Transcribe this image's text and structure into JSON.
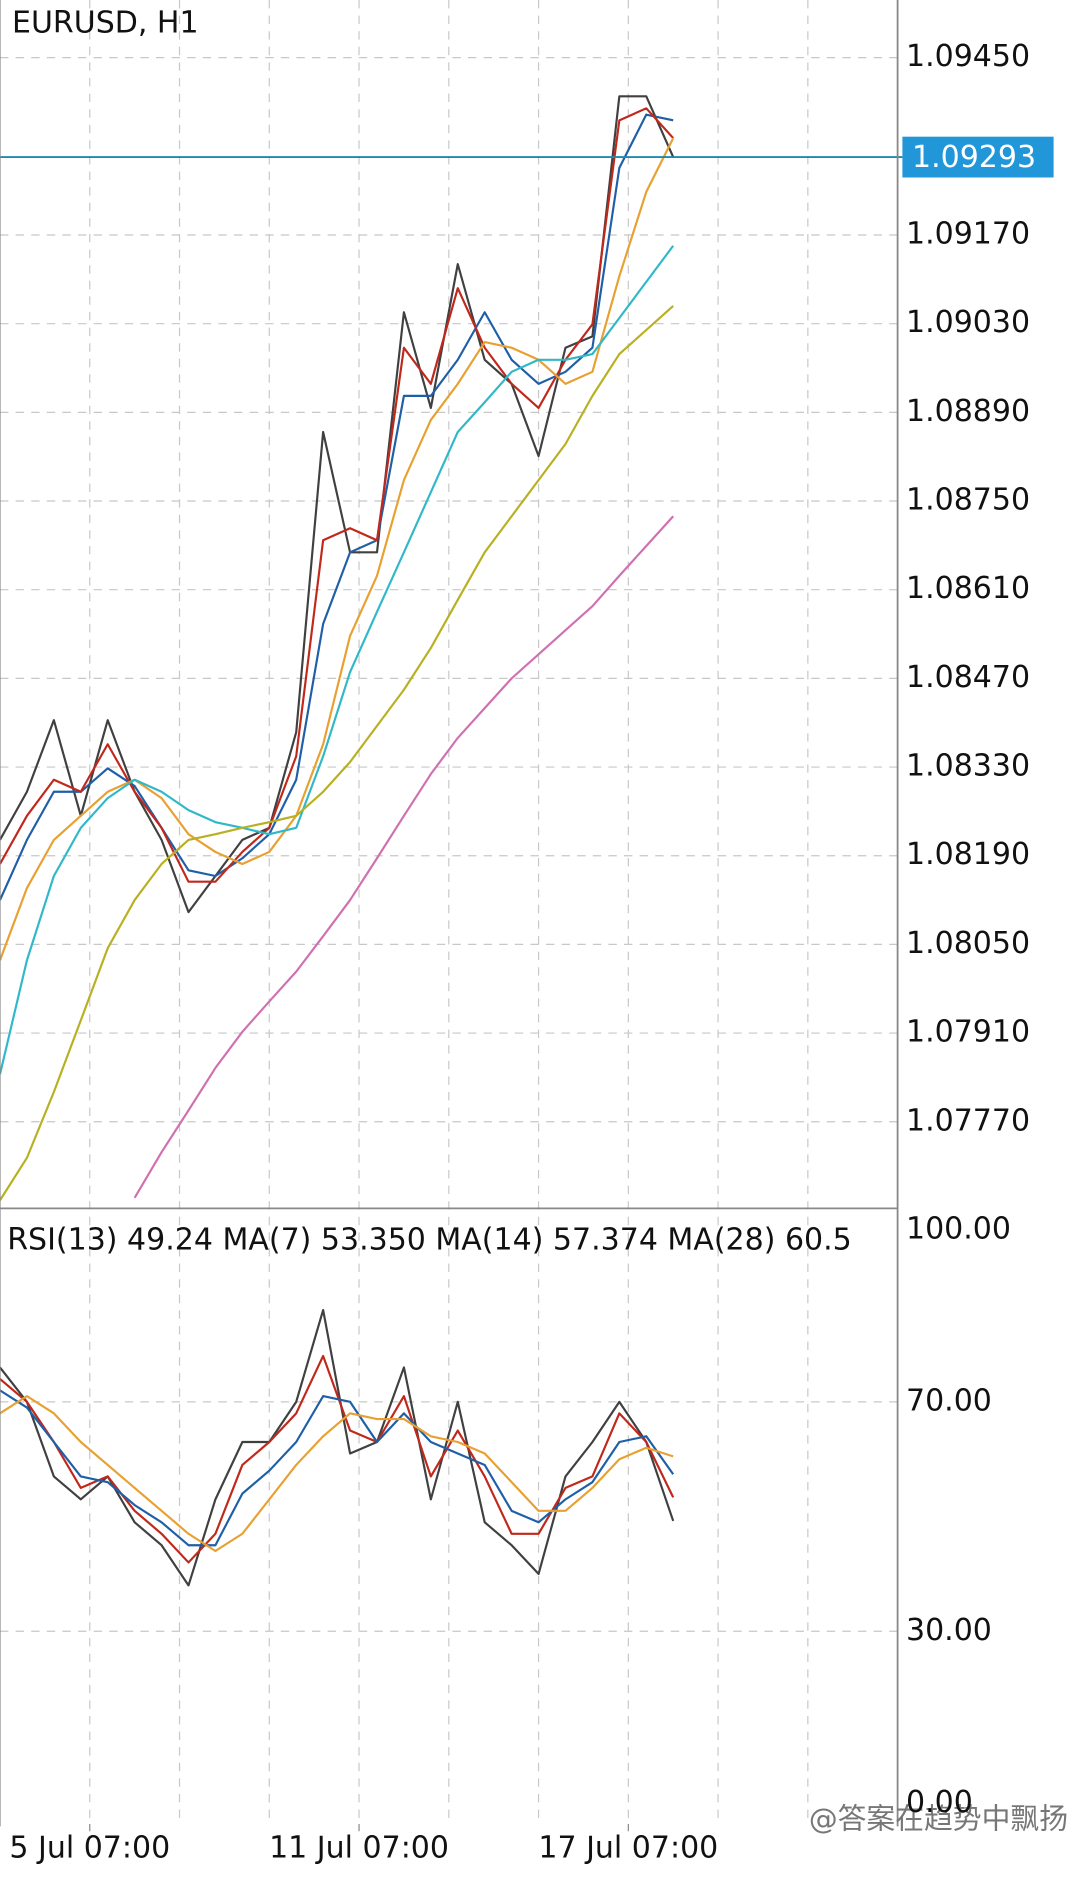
{
  "chart_data": [
    {
      "type": "line",
      "title": "EURUSD, H1",
      "x": [
        0,
        3,
        6,
        9,
        12,
        15,
        18,
        21,
        24,
        27,
        30,
        33,
        36,
        39,
        42,
        45,
        48,
        51,
        54,
        57,
        60,
        63,
        66,
        69,
        72,
        75
      ],
      "xlim": [
        0,
        100
      ],
      "ylim": [
        1.07637,
        1.09541
      ],
      "yticks": [
        {
          "value": 1.0945,
          "label": "1.09450"
        },
        {
          "value": 1.0917,
          "label": "1.09170"
        },
        {
          "value": 1.0903,
          "label": "1.09030"
        },
        {
          "value": 1.0889,
          "label": "1.08890"
        },
        {
          "value": 1.0875,
          "label": "1.08750"
        },
        {
          "value": 1.0861,
          "label": "1.08610"
        },
        {
          "value": 1.0847,
          "label": "1.08470"
        },
        {
          "value": 1.0833,
          "label": "1.08330"
        },
        {
          "value": 1.0819,
          "label": "1.08190"
        },
        {
          "value": 1.0805,
          "label": "1.08050"
        },
        {
          "value": 1.0791,
          "label": "1.07910"
        },
        {
          "value": 1.0777,
          "label": "1.07770"
        }
      ],
      "current_price": 1.09293,
      "current_price_color": "#1b8bb0",
      "current_label_color": "#2196d8",
      "grid": true,
      "series": [
        {
          "color": "#404040",
          "values": [
            1.08215,
            1.08291,
            1.08404,
            1.08253,
            1.08404,
            1.08291,
            1.08215,
            1.08101,
            1.08158,
            1.08215,
            1.08234,
            1.08385,
            1.08859,
            1.08669,
            1.08669,
            1.09048,
            1.08897,
            1.09124,
            1.08973,
            1.08935,
            1.08821,
            1.08992,
            1.0901,
            1.09389,
            1.09389,
            1.09293
          ]
        },
        {
          "color": "#1f5fa8",
          "values": [
            1.0812,
            1.08215,
            1.08291,
            1.08291,
            1.08328,
            1.083,
            1.08234,
            1.08167,
            1.08158,
            1.08186,
            1.08224,
            1.0831,
            1.08556,
            1.08669,
            1.08688,
            1.08916,
            1.08916,
            1.08973,
            1.09048,
            1.08973,
            1.08935,
            1.08954,
            1.08992,
            1.09276,
            1.0936,
            1.09351
          ]
        },
        {
          "color": "#c0281c",
          "values": [
            1.08177,
            1.08253,
            1.0831,
            1.08291,
            1.08366,
            1.08291,
            1.08234,
            1.08149,
            1.08149,
            1.08196,
            1.08234,
            1.08347,
            1.08688,
            1.08707,
            1.08688,
            1.08992,
            1.08935,
            1.09086,
            1.08992,
            1.08935,
            1.08897,
            1.08973,
            1.09029,
            1.09351,
            1.0937,
            1.09323
          ]
        },
        {
          "color": "#e8a030",
          "values": [
            1.08025,
            1.08139,
            1.08215,
            1.08253,
            1.08291,
            1.0831,
            1.08281,
            1.08224,
            1.08196,
            1.08177,
            1.08196,
            1.08253,
            1.08366,
            1.08537,
            1.08632,
            1.08783,
            1.08878,
            1.08935,
            1.09001,
            1.08992,
            1.08973,
            1.08935,
            1.08954,
            1.09105,
            1.09238,
            1.09323
          ]
        },
        {
          "color": "#30b8c8",
          "values": [
            1.07845,
            1.08025,
            1.08158,
            1.08234,
            1.08281,
            1.0831,
            1.08291,
            1.08262,
            1.08243,
            1.08234,
            1.08224,
            1.08234,
            1.08347,
            1.0848,
            1.08575,
            1.08669,
            1.08764,
            1.08859,
            1.08906,
            1.08954,
            1.08973,
            1.08973,
            1.08982,
            1.09039,
            1.09096,
            1.09153
          ]
        },
        {
          "color": "#b8b020",
          "values": [
            1.07646,
            1.07713,
            1.07817,
            1.0793,
            1.08044,
            1.0812,
            1.08177,
            1.08215,
            1.08224,
            1.08234,
            1.08243,
            1.08253,
            1.08291,
            1.08338,
            1.08395,
            1.08452,
            1.08518,
            1.08594,
            1.08669,
            1.08726,
            1.08783,
            1.0884,
            1.08916,
            1.08982,
            1.0902,
            1.09058
          ]
        },
        {
          "color": "#d070b0",
          "values": [
            null,
            null,
            null,
            null,
            null,
            1.0765,
            1.07722,
            1.07788,
            1.07855,
            1.07912,
            1.0796,
            1.08007,
            1.08063,
            1.0812,
            1.08186,
            1.08253,
            1.08319,
            1.08376,
            1.08423,
            1.0847,
            1.08508,
            1.08546,
            1.08584,
            1.08632,
            1.08679,
            1.08726
          ]
        }
      ]
    },
    {
      "type": "line",
      "title": "RSI(13) 49.24 MA(7) 53.350 MA(14) 57.374 MA(28) 60.5",
      "x": [
        0,
        3,
        6,
        9,
        12,
        15,
        18,
        21,
        24,
        27,
        30,
        33,
        36,
        39,
        42,
        45,
        48,
        51,
        54,
        57,
        60,
        63,
        66,
        69,
        72,
        75
      ],
      "xlim": [
        0,
        100
      ],
      "ylim": [
        -3.6,
        103.1
      ],
      "yticks": [
        {
          "value": 100,
          "label": "100.00"
        },
        {
          "value": 70,
          "label": "70.00"
        },
        {
          "value": 30,
          "label": "30.00"
        },
        {
          "value": 0,
          "label": "0.00"
        }
      ],
      "levels": [
        70,
        30
      ],
      "xticks": [
        {
          "value": 10,
          "label": "5 Jul 07:00"
        },
        {
          "value": 40,
          "label": "11 Jul 07:00"
        },
        {
          "value": 70,
          "label": "17 Jul 07:00"
        }
      ],
      "xgrid": [
        10,
        20,
        30,
        40,
        50,
        60,
        70,
        80,
        90
      ],
      "series": [
        {
          "color": "#404040",
          "values": [
            76,
            70,
            57,
            53,
            57,
            49,
            45,
            38,
            53,
            63,
            63,
            70,
            86,
            61,
            63,
            76,
            53,
            70,
            49,
            45,
            40,
            57,
            63,
            70,
            63,
            49.24
          ]
        },
        {
          "color": "#c0281c",
          "values": [
            74,
            70,
            63,
            55,
            57,
            51,
            47,
            42,
            47,
            59,
            63,
            68,
            78,
            65,
            63,
            71,
            57,
            65,
            57,
            47,
            47,
            55,
            57,
            68,
            63,
            53.35
          ]
        },
        {
          "color": "#1f5fa8",
          "values": [
            72,
            69,
            63,
            57,
            56,
            52,
            49,
            45,
            45,
            54,
            58,
            63,
            71,
            70,
            63,
            68,
            63,
            61,
            59,
            51,
            49,
            53,
            56,
            63,
            64,
            57.374
          ]
        },
        {
          "color": "#e8a030",
          "values": [
            68,
            71,
            68,
            63,
            59,
            55,
            51,
            47,
            44,
            47,
            53,
            59,
            64,
            68,
            67,
            67,
            64,
            63,
            61,
            56,
            51,
            51,
            55,
            60,
            62,
            60.5
          ]
        }
      ]
    },
    {
      "type": "text",
      "watermark": "@答案在趋势中飘扬"
    }
  ]
}
